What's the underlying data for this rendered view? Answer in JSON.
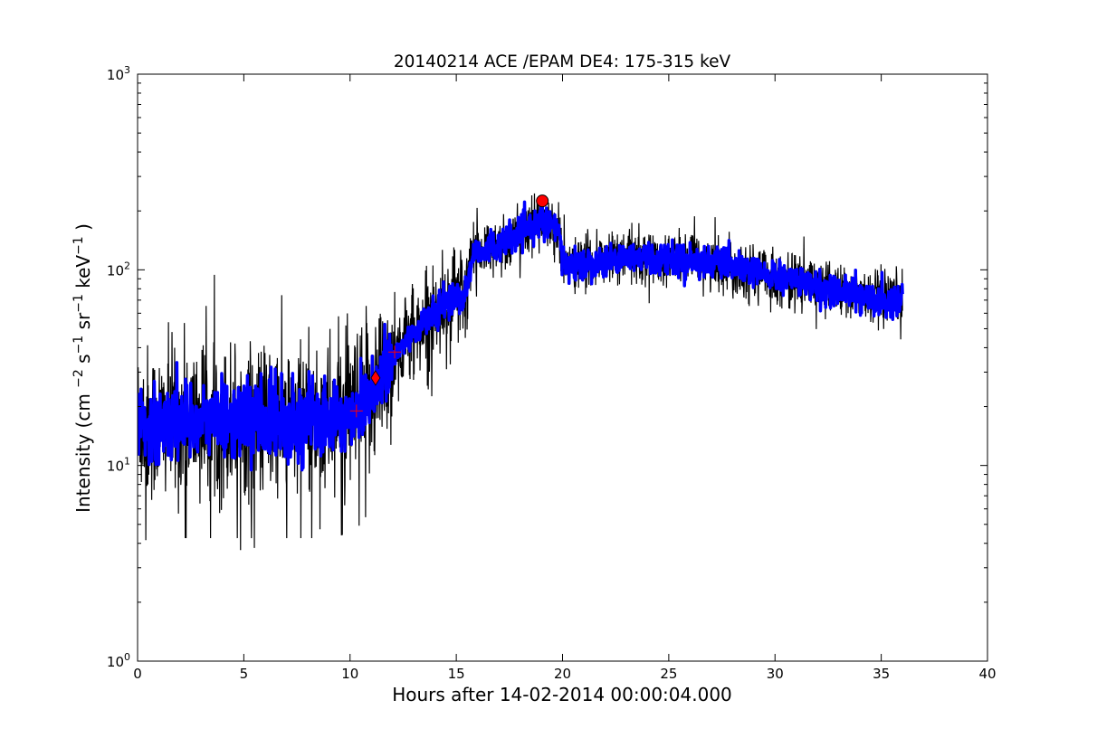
{
  "chart_data": {
    "type": "line",
    "title": "20140214 ACE /EPAM DE4: 175-315 keV",
    "xlabel": "Hours after 14-02-2014 00:00:04.000",
    "ylabel": {
      "prefix": "Intensity (cm",
      "parts": [
        {
          "text": "−2",
          "sup": true
        },
        {
          "text": " s",
          "sup": false
        },
        {
          "text": "−1",
          "sup": true
        },
        {
          "text": " sr",
          "sup": false
        },
        {
          "text": "−1",
          "sup": true
        },
        {
          "text": " keV",
          "sup": false
        },
        {
          "text": "−1",
          "sup": true
        },
        {
          "text": " )",
          "sup": false
        }
      ]
    },
    "x_scale": "linear",
    "y_scale": "log",
    "xlim": [
      0,
      40
    ],
    "ylim": [
      1,
      1000
    ],
    "x_ticks": [
      0,
      5,
      10,
      15,
      20,
      25,
      30,
      35,
      40
    ],
    "x_tick_labels": [
      "0",
      "5",
      "10",
      "15",
      "20",
      "25",
      "30",
      "35",
      "40"
    ],
    "y_ticks": [
      {
        "base": "10",
        "exp": "0"
      },
      {
        "base": "10",
        "exp": "1"
      },
      {
        "base": "10",
        "exp": "2"
      },
      {
        "base": "10",
        "exp": "3"
      }
    ],
    "grid": false,
    "legend": "none",
    "colors": {
      "raw": "#000000",
      "smoothed": "#0000ff",
      "marker_fill": "#ff0000",
      "marker_edge": "#000000",
      "cross": "#ff0000"
    },
    "series": [
      {
        "role": "raw intensity (black)",
        "x": [
          0,
          1,
          2,
          3,
          4,
          5,
          6,
          7,
          8,
          9,
          10,
          10.5,
          11,
          11.5,
          12,
          12.5,
          13,
          13.5,
          14,
          14.5,
          15,
          15.4,
          15.8,
          16,
          16.5,
          17,
          17.5,
          18,
          18.5,
          19,
          19.5,
          19.8,
          20,
          20.5,
          21,
          22,
          23,
          24,
          25,
          26,
          27,
          28,
          29,
          30,
          31,
          32,
          33,
          34,
          35,
          35.5,
          36
        ],
        "y": [
          17,
          16,
          17,
          17,
          17,
          17,
          17,
          17,
          17,
          17,
          18,
          20,
          24,
          29,
          34,
          42,
          48,
          54,
          60,
          68,
          75,
          72,
          120,
          125,
          128,
          133,
          142,
          152,
          165,
          182,
          165,
          160,
          110,
          105,
          108,
          112,
          118,
          115,
          114,
          112,
          110,
          104,
          97,
          92,
          88,
          82,
          78,
          74,
          69,
          68,
          72
        ]
      },
      {
        "role": "smoothed intensity (blue)",
        "x": [
          0,
          1,
          2,
          3,
          4,
          5,
          6,
          7,
          8,
          9,
          10,
          10.5,
          11,
          11.5,
          12,
          12.5,
          13,
          13.5,
          14,
          14.5,
          15,
          15.4,
          15.8,
          16,
          16.5,
          17,
          17.5,
          18,
          18.5,
          19,
          19.5,
          19.8,
          20,
          20.5,
          21,
          22,
          23,
          24,
          25,
          26,
          27,
          28,
          29,
          30,
          31,
          32,
          33,
          34,
          35,
          35.5,
          36
        ],
        "y": [
          17,
          16,
          17,
          17,
          17,
          17,
          17,
          17,
          17,
          17,
          18,
          20,
          24,
          29,
          34,
          42,
          48,
          54,
          60,
          68,
          75,
          72,
          120,
          125,
          128,
          133,
          142,
          152,
          165,
          182,
          165,
          160,
          110,
          105,
          108,
          112,
          118,
          115,
          114,
          112,
          110,
          104,
          97,
          92,
          88,
          82,
          78,
          74,
          69,
          68,
          72
        ]
      }
    ],
    "markers": [
      {
        "shape": "circle",
        "x": 19.05,
        "y": 225
      },
      {
        "shape": "diamond",
        "x": 11.2,
        "y": 28
      }
    ],
    "crosses": [
      {
        "x": 10.3,
        "y": 19
      },
      {
        "x": 12.1,
        "y": 38
      }
    ]
  }
}
